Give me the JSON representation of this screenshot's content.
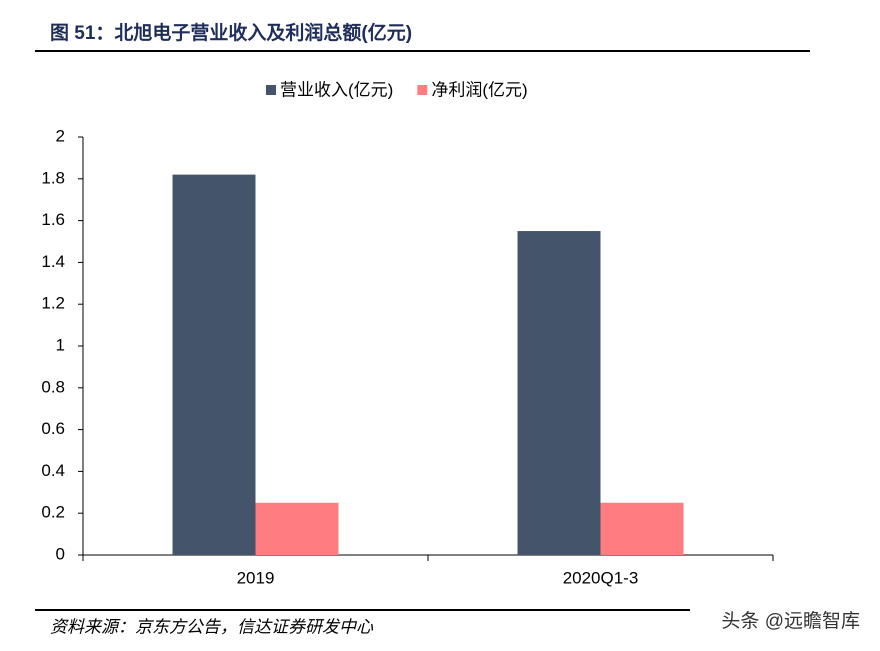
{
  "chart_data": {
    "type": "bar",
    "title": "图 51：北旭电子营业收入及利润总额(亿元)",
    "categories": [
      "2019",
      "2020Q1-3"
    ],
    "series": [
      {
        "name": "营业收入(亿元)",
        "color": "#44546a",
        "values": [
          1.82,
          1.55
        ]
      },
      {
        "name": "净利润(亿元)",
        "color": "#ff7c80",
        "values": [
          0.25,
          0.25
        ]
      }
    ],
    "ylim": [
      0,
      2
    ],
    "yticks": [
      0,
      0.2,
      0.4,
      0.6,
      0.8,
      1,
      1.2,
      1.4,
      1.6,
      1.8,
      2
    ],
    "grid": false,
    "legend": "top"
  },
  "source": "资料来源：京东方公告，信达证券研发中心",
  "watermark": "头条 @远瞻智库"
}
